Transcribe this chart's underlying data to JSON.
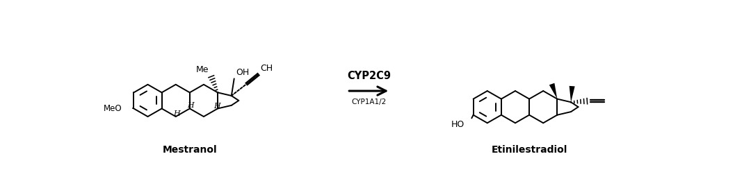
{
  "background_color": "#ffffff",
  "arrow_text_bold": "CYP2C9",
  "arrow_text_normal": "CYP1A1/2",
  "label_left": "Mestranol",
  "label_right": "Etinilestradiol",
  "fig_width": 10.8,
  "fig_height": 2.58,
  "dpi": 100,
  "lw": 1.4
}
